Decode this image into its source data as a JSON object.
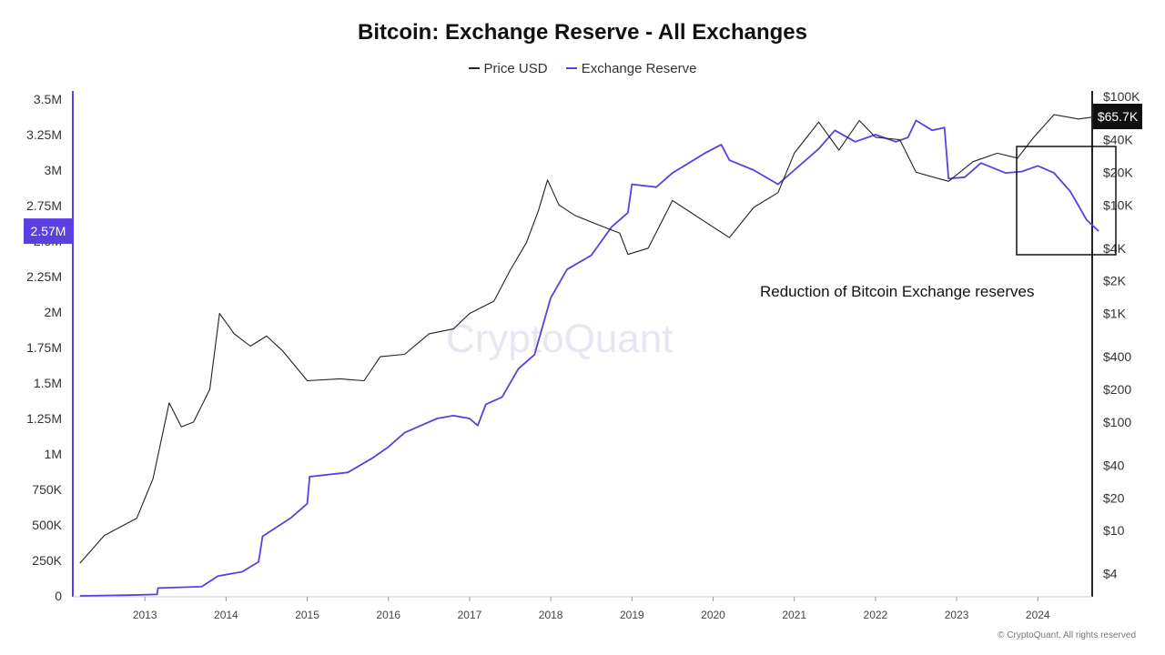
{
  "chart_data": {
    "type": "line",
    "title": "Bitcoin: Exchange Reserve - All Exchanges",
    "legend": [
      {
        "name": "Price USD",
        "color": "#222222"
      },
      {
        "name": "Exchange Reserve",
        "color": "#5b3fe0"
      }
    ],
    "legend_position": "top-center",
    "grid": false,
    "x_ticks": [
      "2013",
      "2014",
      "2015",
      "2016",
      "2017",
      "2018",
      "2019",
      "2020",
      "2021",
      "2022",
      "2023",
      "2024"
    ],
    "y_left": {
      "ticks": [
        "0",
        "250K",
        "500K",
        "750K",
        "1M",
        "1.25M",
        "1.5M",
        "1.75M",
        "2M",
        "2.25M",
        "2.5M",
        "2.75M",
        "3M",
        "3.25M",
        "3.5M"
      ],
      "range": [
        0,
        3500000
      ],
      "current_label": "2.57M",
      "current_value": 2570000
    },
    "y_right": {
      "scale": "log",
      "ticks": [
        "$4",
        "$10",
        "$20",
        "$40",
        "$100",
        "$200",
        "$400",
        "$1K",
        "$2K",
        "$4K",
        "$10K",
        "$20K",
        "$40K",
        "$100K"
      ],
      "range": [
        2.5,
        100000
      ],
      "current_label": "$65.7K",
      "current_value": 65700
    },
    "series": [
      {
        "name": "Exchange Reserve",
        "axis": "left",
        "color": "#5b3fe0",
        "points": [
          [
            2012.2,
            0
          ],
          [
            2012.8,
            5000
          ],
          [
            2013.15,
            10000
          ],
          [
            2013.16,
            55000
          ],
          [
            2013.7,
            65000
          ],
          [
            2013.9,
            140000
          ],
          [
            2014.2,
            170000
          ],
          [
            2014.4,
            240000
          ],
          [
            2014.45,
            420000
          ],
          [
            2014.8,
            550000
          ],
          [
            2015.0,
            650000
          ],
          [
            2015.03,
            840000
          ],
          [
            2015.5,
            870000
          ],
          [
            2015.8,
            970000
          ],
          [
            2016.0,
            1050000
          ],
          [
            2016.2,
            1150000
          ],
          [
            2016.4,
            1200000
          ],
          [
            2016.6,
            1250000
          ],
          [
            2016.8,
            1270000
          ],
          [
            2017.0,
            1250000
          ],
          [
            2017.1,
            1200000
          ],
          [
            2017.2,
            1350000
          ],
          [
            2017.4,
            1400000
          ],
          [
            2017.6,
            1600000
          ],
          [
            2017.8,
            1700000
          ],
          [
            2018.0,
            2100000
          ],
          [
            2018.2,
            2300000
          ],
          [
            2018.5,
            2400000
          ],
          [
            2018.75,
            2600000
          ],
          [
            2018.95,
            2700000
          ],
          [
            2019.0,
            2900000
          ],
          [
            2019.3,
            2880000
          ],
          [
            2019.5,
            2980000
          ],
          [
            2019.7,
            3050000
          ],
          [
            2019.9,
            3120000
          ],
          [
            2020.1,
            3180000
          ],
          [
            2020.2,
            3070000
          ],
          [
            2020.5,
            3000000
          ],
          [
            2020.8,
            2900000
          ],
          [
            2021.0,
            3000000
          ],
          [
            2021.3,
            3150000
          ],
          [
            2021.5,
            3280000
          ],
          [
            2021.75,
            3200000
          ],
          [
            2022.0,
            3250000
          ],
          [
            2022.25,
            3200000
          ],
          [
            2022.4,
            3230000
          ],
          [
            2022.5,
            3350000
          ],
          [
            2022.7,
            3280000
          ],
          [
            2022.85,
            3300000
          ],
          [
            2022.9,
            2940000
          ],
          [
            2023.1,
            2950000
          ],
          [
            2023.3,
            3050000
          ],
          [
            2023.6,
            2980000
          ],
          [
            2023.8,
            2990000
          ],
          [
            2024.0,
            3030000
          ],
          [
            2024.2,
            2980000
          ],
          [
            2024.4,
            2850000
          ],
          [
            2024.5,
            2750000
          ],
          [
            2024.6,
            2650000
          ],
          [
            2024.75,
            2570000
          ]
        ]
      },
      {
        "name": "Price USD",
        "axis": "right",
        "color": "#222222",
        "points": [
          [
            2012.2,
            5
          ],
          [
            2012.5,
            9
          ],
          [
            2012.9,
            13
          ],
          [
            2013.1,
            30
          ],
          [
            2013.3,
            150
          ],
          [
            2013.45,
            90
          ],
          [
            2013.6,
            100
          ],
          [
            2013.8,
            200
          ],
          [
            2013.92,
            1000
          ],
          [
            2014.1,
            650
          ],
          [
            2014.3,
            500
          ],
          [
            2014.5,
            620
          ],
          [
            2014.7,
            450
          ],
          [
            2015.0,
            240
          ],
          [
            2015.4,
            250
          ],
          [
            2015.7,
            240
          ],
          [
            2015.9,
            400
          ],
          [
            2016.2,
            420
          ],
          [
            2016.5,
            650
          ],
          [
            2016.8,
            720
          ],
          [
            2017.0,
            1000
          ],
          [
            2017.3,
            1300
          ],
          [
            2017.5,
            2500
          ],
          [
            2017.7,
            4500
          ],
          [
            2017.85,
            9000
          ],
          [
            2017.96,
            17000
          ],
          [
            2018.1,
            10000
          ],
          [
            2018.3,
            8000
          ],
          [
            2018.6,
            6500
          ],
          [
            2018.85,
            5500
          ],
          [
            2018.95,
            3500
          ],
          [
            2019.2,
            4000
          ],
          [
            2019.5,
            11000
          ],
          [
            2019.9,
            7000
          ],
          [
            2020.2,
            5000
          ],
          [
            2020.5,
            9500
          ],
          [
            2020.8,
            13000
          ],
          [
            2021.0,
            30000
          ],
          [
            2021.3,
            58000
          ],
          [
            2021.55,
            32000
          ],
          [
            2021.8,
            60000
          ],
          [
            2022.0,
            42000
          ],
          [
            2022.3,
            40000
          ],
          [
            2022.5,
            20000
          ],
          [
            2022.9,
            16500
          ],
          [
            2023.2,
            25000
          ],
          [
            2023.5,
            30000
          ],
          [
            2023.75,
            27000
          ],
          [
            2023.95,
            42000
          ],
          [
            2024.2,
            68000
          ],
          [
            2024.5,
            62000
          ],
          [
            2024.75,
            65700
          ]
        ]
      }
    ],
    "annotation": "Reduction of Bitcoin Exchange reserves"
  },
  "watermark": "CryptoQuant",
  "footer": "© CryptoQuant. All rights reserved"
}
